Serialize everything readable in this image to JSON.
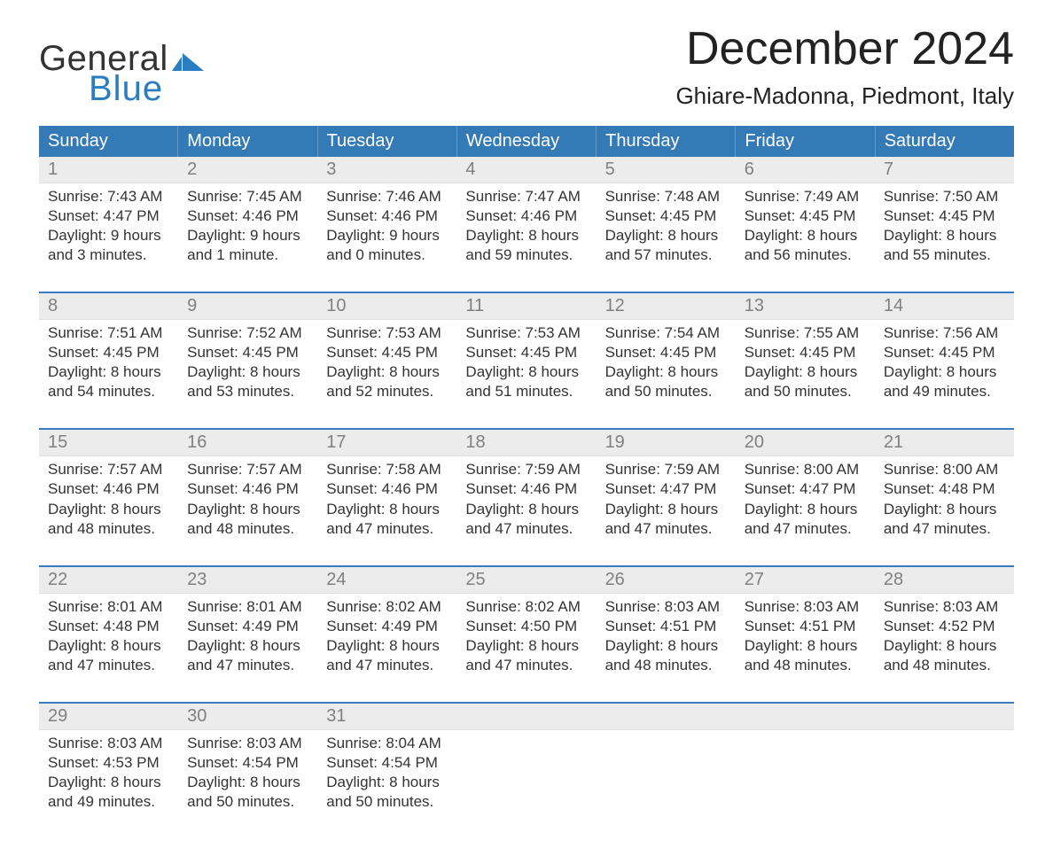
{
  "branding": {
    "logo_word1": "General",
    "logo_word2": "Blue",
    "logo_mark_color": "#2a7dc0"
  },
  "header": {
    "month_title": "December 2024",
    "location": "Ghiare-Madonna, Piedmont, Italy"
  },
  "colors": {
    "header_bg": "#337ab7",
    "header_text": "#ffffff",
    "date_bg": "#ececec",
    "date_text": "#808080",
    "rule": "#3a7bbf",
    "body_text": "#333333"
  },
  "weekdays": [
    "Sunday",
    "Monday",
    "Tuesday",
    "Wednesday",
    "Thursday",
    "Friday",
    "Saturday"
  ],
  "field_labels": {
    "sunrise": "Sunrise:",
    "sunset": "Sunset:",
    "daylight": "Daylight:"
  },
  "weeks": [
    [
      {
        "date": "1",
        "sunrise": "7:43 AM",
        "sunset": "4:47 PM",
        "daylight": "9 hours and 3 minutes."
      },
      {
        "date": "2",
        "sunrise": "7:45 AM",
        "sunset": "4:46 PM",
        "daylight": "9 hours and 1 minute."
      },
      {
        "date": "3",
        "sunrise": "7:46 AM",
        "sunset": "4:46 PM",
        "daylight": "9 hours and 0 minutes."
      },
      {
        "date": "4",
        "sunrise": "7:47 AM",
        "sunset": "4:46 PM",
        "daylight": "8 hours and 59 minutes."
      },
      {
        "date": "5",
        "sunrise": "7:48 AM",
        "sunset": "4:45 PM",
        "daylight": "8 hours and 57 minutes."
      },
      {
        "date": "6",
        "sunrise": "7:49 AM",
        "sunset": "4:45 PM",
        "daylight": "8 hours and 56 minutes."
      },
      {
        "date": "7",
        "sunrise": "7:50 AM",
        "sunset": "4:45 PM",
        "daylight": "8 hours and 55 minutes."
      }
    ],
    [
      {
        "date": "8",
        "sunrise": "7:51 AM",
        "sunset": "4:45 PM",
        "daylight": "8 hours and 54 minutes."
      },
      {
        "date": "9",
        "sunrise": "7:52 AM",
        "sunset": "4:45 PM",
        "daylight": "8 hours and 53 minutes."
      },
      {
        "date": "10",
        "sunrise": "7:53 AM",
        "sunset": "4:45 PM",
        "daylight": "8 hours and 52 minutes."
      },
      {
        "date": "11",
        "sunrise": "7:53 AM",
        "sunset": "4:45 PM",
        "daylight": "8 hours and 51 minutes."
      },
      {
        "date": "12",
        "sunrise": "7:54 AM",
        "sunset": "4:45 PM",
        "daylight": "8 hours and 50 minutes."
      },
      {
        "date": "13",
        "sunrise": "7:55 AM",
        "sunset": "4:45 PM",
        "daylight": "8 hours and 50 minutes."
      },
      {
        "date": "14",
        "sunrise": "7:56 AM",
        "sunset": "4:45 PM",
        "daylight": "8 hours and 49 minutes."
      }
    ],
    [
      {
        "date": "15",
        "sunrise": "7:57 AM",
        "sunset": "4:46 PM",
        "daylight": "8 hours and 48 minutes."
      },
      {
        "date": "16",
        "sunrise": "7:57 AM",
        "sunset": "4:46 PM",
        "daylight": "8 hours and 48 minutes."
      },
      {
        "date": "17",
        "sunrise": "7:58 AM",
        "sunset": "4:46 PM",
        "daylight": "8 hours and 47 minutes."
      },
      {
        "date": "18",
        "sunrise": "7:59 AM",
        "sunset": "4:46 PM",
        "daylight": "8 hours and 47 minutes."
      },
      {
        "date": "19",
        "sunrise": "7:59 AM",
        "sunset": "4:47 PM",
        "daylight": "8 hours and 47 minutes."
      },
      {
        "date": "20",
        "sunrise": "8:00 AM",
        "sunset": "4:47 PM",
        "daylight": "8 hours and 47 minutes."
      },
      {
        "date": "21",
        "sunrise": "8:00 AM",
        "sunset": "4:48 PM",
        "daylight": "8 hours and 47 minutes."
      }
    ],
    [
      {
        "date": "22",
        "sunrise": "8:01 AM",
        "sunset": "4:48 PM",
        "daylight": "8 hours and 47 minutes."
      },
      {
        "date": "23",
        "sunrise": "8:01 AM",
        "sunset": "4:49 PM",
        "daylight": "8 hours and 47 minutes."
      },
      {
        "date": "24",
        "sunrise": "8:02 AM",
        "sunset": "4:49 PM",
        "daylight": "8 hours and 47 minutes."
      },
      {
        "date": "25",
        "sunrise": "8:02 AM",
        "sunset": "4:50 PM",
        "daylight": "8 hours and 47 minutes."
      },
      {
        "date": "26",
        "sunrise": "8:03 AM",
        "sunset": "4:51 PM",
        "daylight": "8 hours and 48 minutes."
      },
      {
        "date": "27",
        "sunrise": "8:03 AM",
        "sunset": "4:51 PM",
        "daylight": "8 hours and 48 minutes."
      },
      {
        "date": "28",
        "sunrise": "8:03 AM",
        "sunset": "4:52 PM",
        "daylight": "8 hours and 48 minutes."
      }
    ],
    [
      {
        "date": "29",
        "sunrise": "8:03 AM",
        "sunset": "4:53 PM",
        "daylight": "8 hours and 49 minutes."
      },
      {
        "date": "30",
        "sunrise": "8:03 AM",
        "sunset": "4:54 PM",
        "daylight": "8 hours and 50 minutes."
      },
      {
        "date": "31",
        "sunrise": "8:04 AM",
        "sunset": "4:54 PM",
        "daylight": "8 hours and 50 minutes."
      },
      {
        "empty": true
      },
      {
        "empty": true
      },
      {
        "empty": true
      },
      {
        "empty": true
      }
    ]
  ]
}
